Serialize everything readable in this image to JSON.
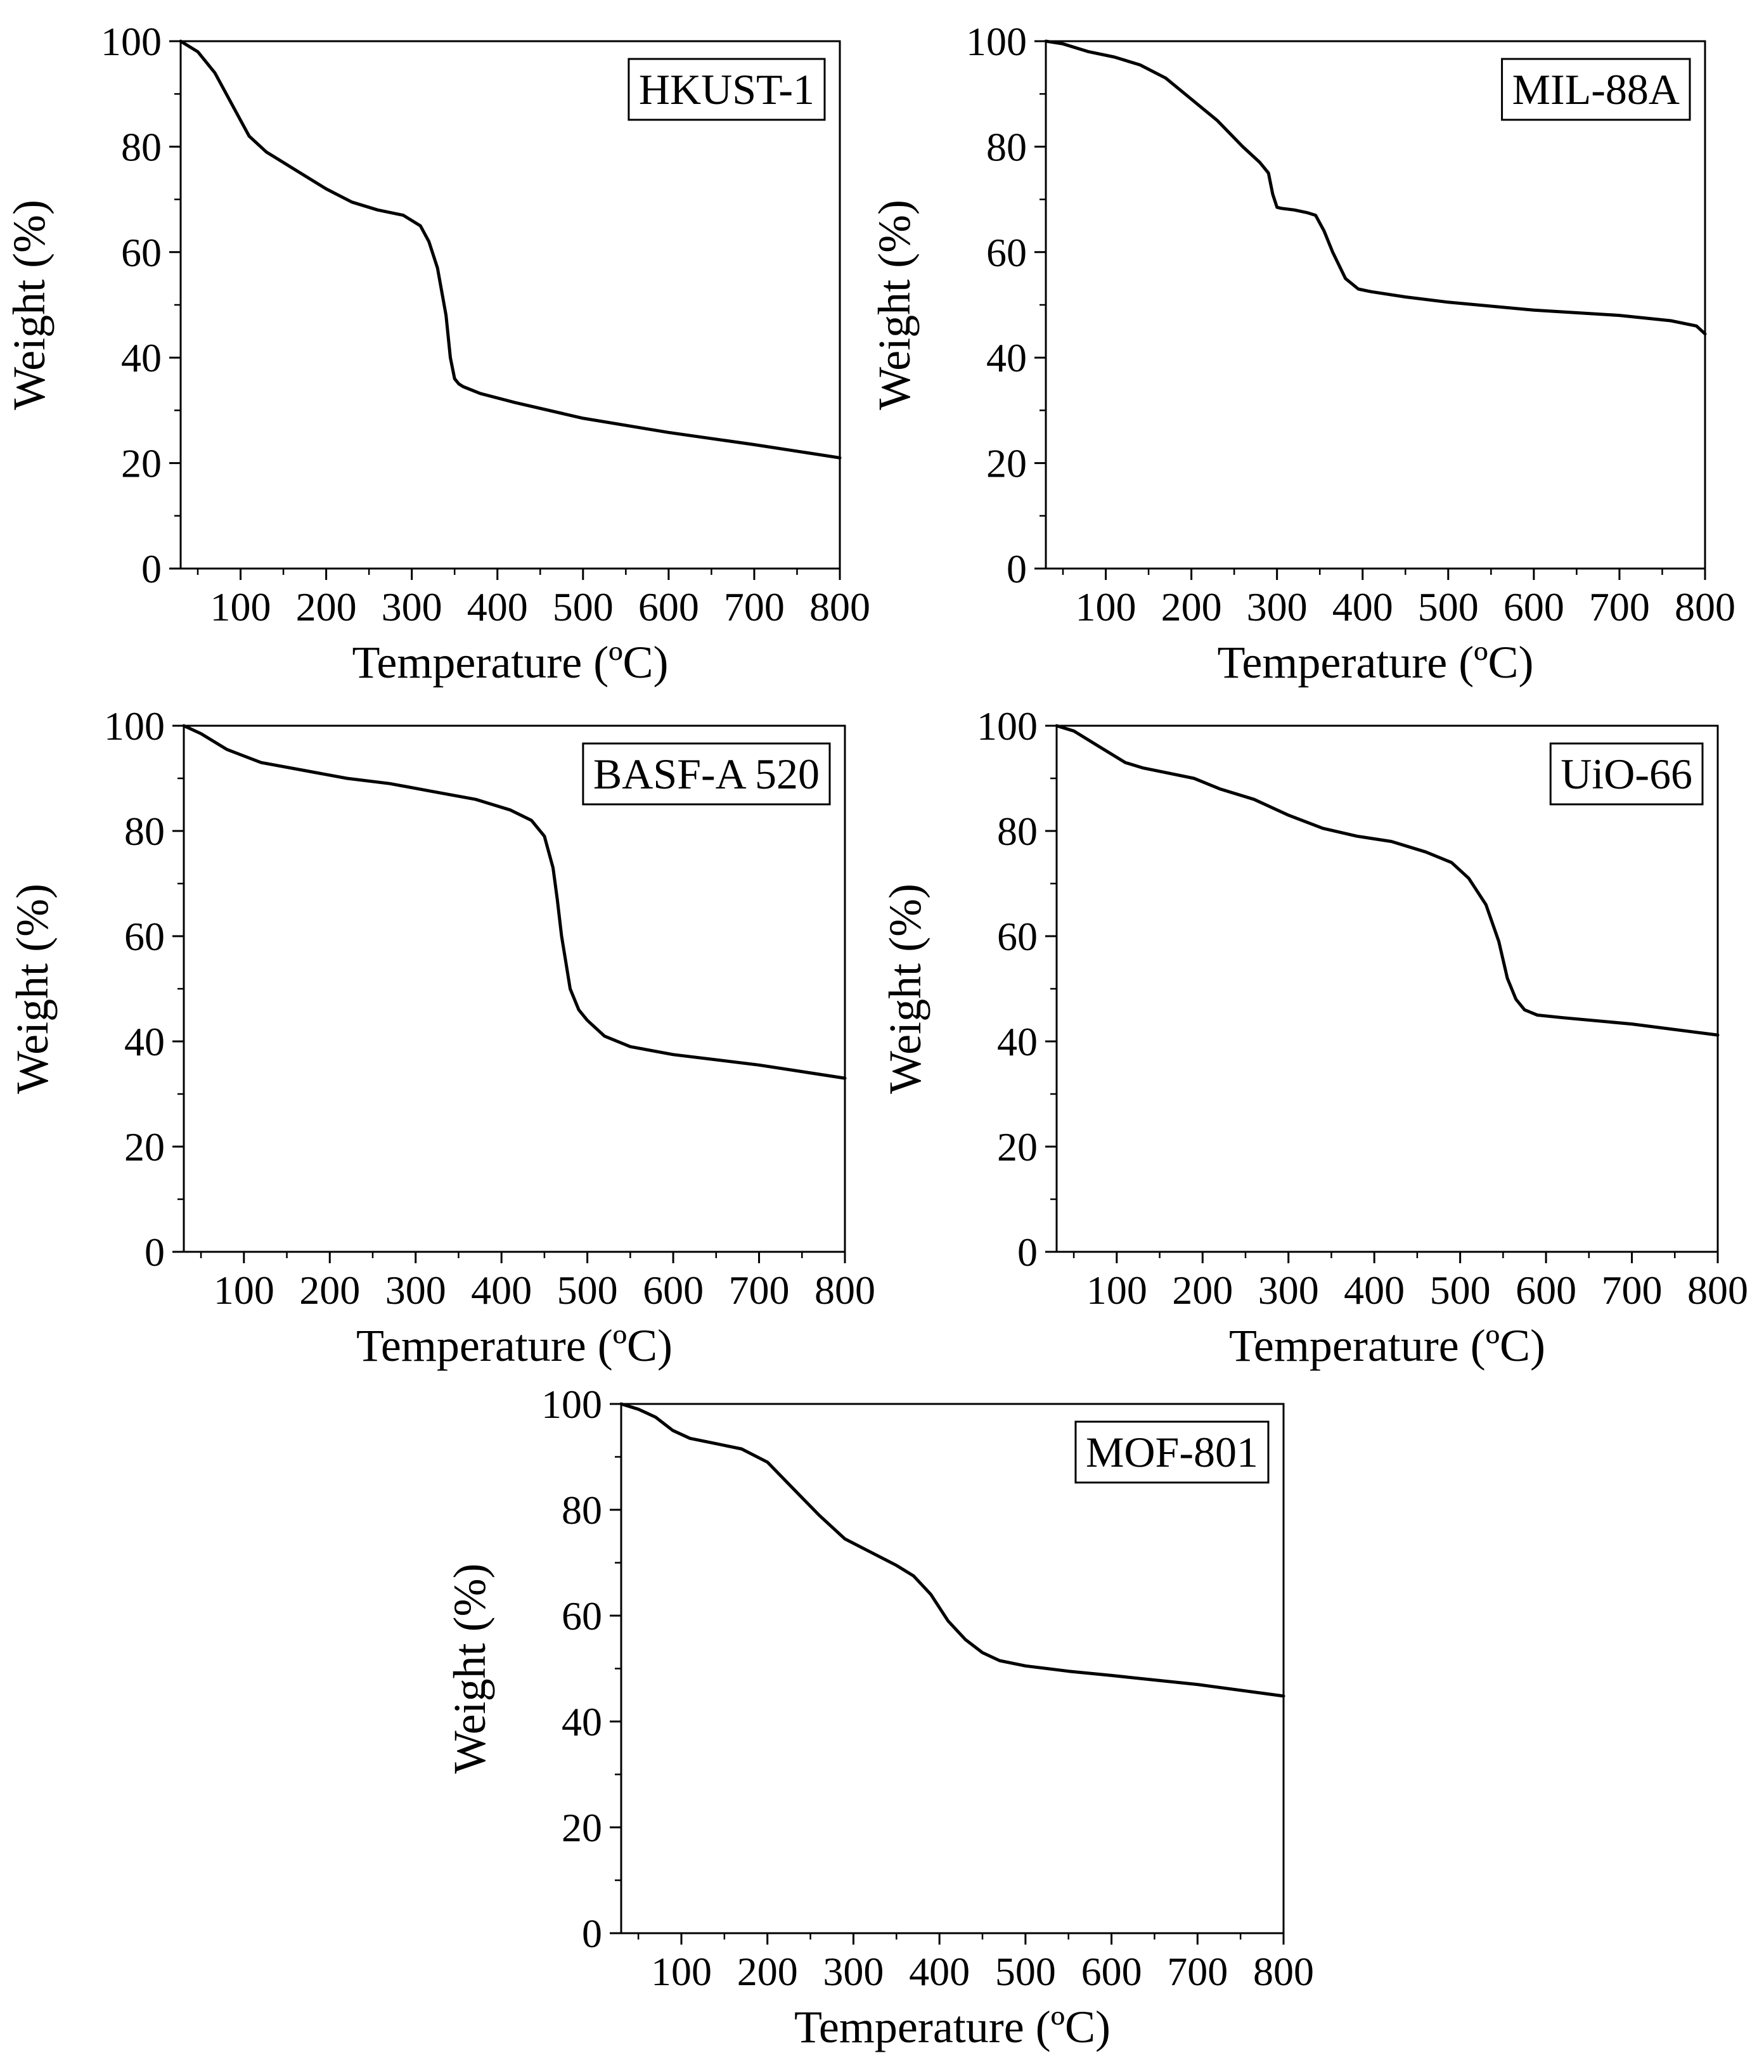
{
  "figure": {
    "description_type": "TGA curves"
  },
  "chart_data": [
    {
      "type": "line",
      "label": "HKUST-1",
      "xlabel": "Temperature (ºC)",
      "ylabel": "Weight (%)",
      "xlim": [
        30,
        800
      ],
      "ylim": [
        0,
        100
      ],
      "xticks": [
        100,
        200,
        300,
        400,
        500,
        600,
        700,
        800
      ],
      "yticks": [
        0,
        20,
        40,
        60,
        80,
        100
      ],
      "x": [
        30,
        50,
        70,
        90,
        110,
        130,
        160,
        200,
        230,
        260,
        290,
        310,
        320,
        330,
        340,
        345,
        350,
        355,
        360,
        380,
        420,
        500,
        600,
        700,
        800
      ],
      "y": [
        100,
        98,
        94,
        88,
        82,
        79,
        76,
        72,
        69.5,
        68,
        67,
        65,
        62,
        57,
        48,
        40,
        36,
        35,
        34.5,
        33.2,
        31.5,
        28.5,
        25.8,
        23.5,
        21
      ]
    },
    {
      "type": "line",
      "label": "MIL-88A",
      "xlabel": "Temperature (ºC)",
      "ylabel": "Weight (%)",
      "xlim": [
        30,
        800
      ],
      "ylim": [
        0,
        100
      ],
      "xticks": [
        100,
        200,
        300,
        400,
        500,
        600,
        700,
        800
      ],
      "yticks": [
        0,
        20,
        40,
        60,
        80,
        100
      ],
      "x": [
        30,
        50,
        80,
        110,
        140,
        170,
        200,
        230,
        260,
        280,
        290,
        295,
        300,
        305,
        320,
        335,
        345,
        355,
        365,
        380,
        395,
        410,
        450,
        500,
        600,
        700,
        760,
        790,
        800
      ],
      "y": [
        100,
        99.5,
        98,
        97,
        95.5,
        93,
        89,
        85,
        80,
        77,
        75,
        71,
        68.5,
        68.3,
        68,
        67.5,
        67,
        64,
        60,
        55,
        53,
        52.5,
        51.5,
        50.5,
        49,
        48,
        47,
        46,
        44.5
      ]
    },
    {
      "type": "line",
      "label": "BASF-A 520",
      "xlabel": "Temperature (ºC)",
      "ylabel": "Weight (%)",
      "xlim": [
        30,
        800
      ],
      "ylim": [
        0,
        100
      ],
      "xticks": [
        100,
        200,
        300,
        400,
        500,
        600,
        700,
        800
      ],
      "yticks": [
        0,
        20,
        40,
        60,
        80,
        100
      ],
      "x": [
        30,
        50,
        80,
        120,
        170,
        220,
        270,
        320,
        370,
        410,
        435,
        450,
        460,
        465,
        470,
        475,
        480,
        490,
        500,
        520,
        550,
        600,
        700,
        800
      ],
      "y": [
        100,
        98.5,
        95.5,
        93,
        91.5,
        90,
        89,
        87.5,
        86,
        84,
        82,
        79,
        73,
        67,
        60,
        55,
        50,
        46,
        44,
        41,
        39,
        37.5,
        35.5,
        33
      ]
    },
    {
      "type": "line",
      "label": "UiO-66",
      "xlabel": "Temperature (ºC)",
      "ylabel": "Weight (%)",
      "xlim": [
        30,
        800
      ],
      "ylim": [
        0,
        100
      ],
      "xticks": [
        100,
        200,
        300,
        400,
        500,
        600,
        700,
        800
      ],
      "yticks": [
        0,
        20,
        40,
        60,
        80,
        100
      ],
      "x": [
        30,
        50,
        80,
        110,
        130,
        160,
        190,
        220,
        260,
        300,
        340,
        380,
        420,
        460,
        490,
        510,
        530,
        545,
        555,
        565,
        575,
        590,
        620,
        700,
        800
      ],
      "y": [
        100,
        99,
        96,
        93,
        92,
        91,
        90,
        88,
        86,
        83,
        80.5,
        79,
        78,
        76,
        74,
        71,
        66,
        59,
        52,
        48,
        46,
        45,
        44.5,
        43.3,
        41.2
      ]
    },
    {
      "type": "line",
      "label": "MOF-801",
      "xlabel": "Temperature (ºC)",
      "ylabel": "Weight (%)",
      "xlim": [
        30,
        800
      ],
      "ylim": [
        0,
        100
      ],
      "xticks": [
        100,
        200,
        300,
        400,
        500,
        600,
        700,
        800
      ],
      "yticks": [
        0,
        20,
        40,
        60,
        80,
        100
      ],
      "x": [
        30,
        50,
        70,
        90,
        110,
        140,
        170,
        200,
        230,
        260,
        290,
        320,
        350,
        370,
        390,
        410,
        430,
        450,
        470,
        500,
        550,
        600,
        700,
        800
      ],
      "y": [
        100,
        99,
        97.5,
        95,
        93.5,
        92.5,
        91.5,
        89,
        84,
        79,
        74.5,
        72,
        69.5,
        67.5,
        64,
        59,
        55.5,
        53,
        51.5,
        50.5,
        49.5,
        48.7,
        47,
        44.8
      ]
    }
  ]
}
